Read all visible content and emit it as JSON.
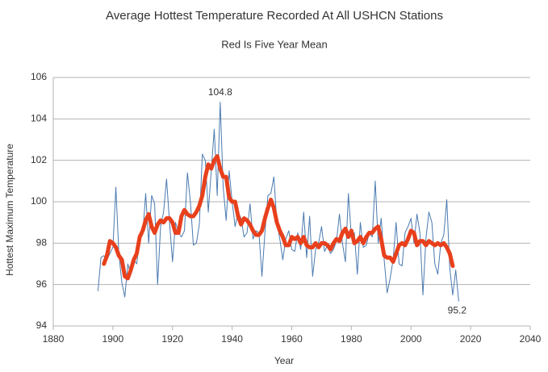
{
  "chart_data": {
    "type": "line",
    "title": "Average Hottest Temperature Recorded At All USHCN  Stations",
    "subtitle": "Red Is Five Year Mean",
    "x_label": "Year",
    "y_label": "Hottest Maximum Temperature",
    "xlim": [
      1880,
      2040
    ],
    "xticks": [
      1880,
      1900,
      1920,
      1940,
      1960,
      1980,
      2000,
      2020,
      2040
    ],
    "ylim": [
      94,
      106
    ],
    "yticks": [
      94,
      96,
      98,
      100,
      102,
      104,
      106
    ],
    "grid": true,
    "annotations": [
      "104.8",
      "95.2"
    ],
    "series": [
      {
        "color": "#4a7ab0",
        "width": 1,
        "x": [
          1895,
          1896,
          1897,
          1898,
          1899,
          1900,
          1901,
          1902,
          1903,
          1904,
          1905,
          1906,
          1907,
          1908,
          1909,
          1910,
          1911,
          1912,
          1913,
          1914,
          1915,
          1916,
          1917,
          1918,
          1919,
          1920,
          1921,
          1922,
          1923,
          1924,
          1925,
          1926,
          1927,
          1928,
          1929,
          1930,
          1931,
          1932,
          1933,
          1934,
          1935,
          1936,
          1937,
          1938,
          1939,
          1940,
          1941,
          1942,
          1943,
          1944,
          1945,
          1946,
          1947,
          1948,
          1949,
          1950,
          1951,
          1952,
          1953,
          1954,
          1955,
          1956,
          1957,
          1958,
          1959,
          1960,
          1961,
          1962,
          1963,
          1964,
          1965,
          1966,
          1967,
          1968,
          1969,
          1970,
          1971,
          1972,
          1973,
          1974,
          1975,
          1976,
          1977,
          1978,
          1979,
          1980,
          1981,
          1982,
          1983,
          1984,
          1985,
          1986,
          1987,
          1988,
          1989,
          1990,
          1991,
          1992,
          1993,
          1994,
          1995,
          1996,
          1997,
          1998,
          1999,
          2000,
          2001,
          2002,
          2003,
          2004,
          2005,
          2006,
          2007,
          2008,
          2009,
          2010,
          2011,
          2012,
          2013,
          2014,
          2015,
          2016
        ],
        "values": [
          95.7,
          97.3,
          97.4,
          97.2,
          97.5,
          97.8,
          100.7,
          97.5,
          96.1,
          95.4,
          97.0,
          96.5,
          97.2,
          97.0,
          98.2,
          98.4,
          100.4,
          98.0,
          100.3,
          99.9,
          96.0,
          98.8,
          99.5,
          101.1,
          99.0,
          97.1,
          99.0,
          98.5,
          98.3,
          98.6,
          101.4,
          100.0,
          97.9,
          98.0,
          98.9,
          102.3,
          102.0,
          99.5,
          101.5,
          103.5,
          100.3,
          104.8,
          100.7,
          99.1,
          101.5,
          100.0,
          98.8,
          99.5,
          99.2,
          98.3,
          98.5,
          99.9,
          98.2,
          98.6,
          98.5,
          96.4,
          98.5,
          100.3,
          100.4,
          101.2,
          99.0,
          98.2,
          97.2,
          98.2,
          98.6,
          97.7,
          97.6,
          98.5,
          97.7,
          99.5,
          97.3,
          99.3,
          96.4,
          97.7,
          98.0,
          98.8,
          97.6,
          97.9,
          97.5,
          97.7,
          98.1,
          99.4,
          98.0,
          97.1,
          100.4,
          98.3,
          98.5,
          96.5,
          99.0,
          97.8,
          97.9,
          98.5,
          98.3,
          101.0,
          98.0,
          99.2,
          97.2,
          95.6,
          96.3,
          97.2,
          99.0,
          97.0,
          96.9,
          98.5,
          98.8,
          99.2,
          98.0,
          99.4,
          98.5,
          95.5,
          98.2,
          99.5,
          99.0,
          97.0,
          96.5,
          98.0,
          98.4,
          100.1,
          96.8,
          95.5,
          96.7,
          95.2
        ]
      },
      {
        "color": "#e8401c",
        "width": 5,
        "x": [
          1897,
          1898,
          1899,
          1900,
          1901,
          1902,
          1903,
          1904,
          1905,
          1906,
          1907,
          1908,
          1909,
          1910,
          1911,
          1912,
          1913,
          1914,
          1915,
          1916,
          1917,
          1918,
          1919,
          1920,
          1921,
          1922,
          1923,
          1924,
          1925,
          1926,
          1927,
          1928,
          1929,
          1930,
          1931,
          1932,
          1933,
          1934,
          1935,
          1936,
          1937,
          1938,
          1939,
          1940,
          1941,
          1942,
          1943,
          1944,
          1945,
          1946,
          1947,
          1948,
          1949,
          1950,
          1951,
          1952,
          1953,
          1954,
          1955,
          1956,
          1957,
          1958,
          1959,
          1960,
          1961,
          1962,
          1963,
          1964,
          1965,
          1966,
          1967,
          1968,
          1969,
          1970,
          1971,
          1972,
          1973,
          1974,
          1975,
          1976,
          1977,
          1978,
          1979,
          1980,
          1981,
          1982,
          1983,
          1984,
          1985,
          1986,
          1987,
          1988,
          1989,
          1990,
          1991,
          1992,
          1993,
          1994,
          1995,
          1996,
          1997,
          1998,
          1999,
          2000,
          2001,
          2002,
          2003,
          2004,
          2005,
          2006,
          2007,
          2008,
          2009,
          2010,
          2011,
          2012,
          2013,
          2014
        ],
        "values": [
          97.0,
          97.4,
          98.1,
          98.0,
          97.8,
          97.4,
          97.2,
          96.4,
          96.3,
          96.7,
          97.2,
          97.5,
          98.3,
          98.6,
          99.1,
          99.4,
          98.8,
          98.5,
          98.9,
          99.1,
          99.0,
          99.2,
          99.2,
          99.0,
          98.5,
          98.5,
          99.3,
          99.6,
          99.4,
          99.3,
          99.3,
          99.5,
          99.8,
          100.3,
          101.2,
          101.8,
          101.6,
          102.0,
          102.2,
          101.6,
          101.2,
          101.2,
          100.2,
          100.0,
          100.0,
          99.3,
          98.9,
          99.2,
          99.1,
          98.9,
          98.6,
          98.4,
          98.4,
          98.6,
          99.2,
          99.7,
          100.1,
          99.7,
          99.0,
          98.6,
          98.3,
          97.9,
          97.9,
          98.3,
          98.2,
          98.3,
          98.0,
          98.3,
          97.9,
          97.8,
          97.8,
          98.0,
          97.8,
          98.0,
          98.0,
          97.9,
          97.7,
          98.0,
          98.2,
          98.1,
          98.5,
          98.7,
          98.3,
          98.6,
          98.0,
          98.1,
          98.3,
          98.0,
          98.3,
          98.5,
          98.5,
          98.7,
          98.8,
          98.2,
          97.4,
          97.3,
          97.3,
          97.1,
          97.5,
          97.9,
          98.0,
          97.9,
          98.2,
          98.6,
          98.5,
          97.9,
          98.1,
          98.1,
          97.9,
          98.1,
          98.0,
          97.9,
          98.0,
          97.9,
          98.0,
          97.8,
          97.5,
          96.9
        ]
      }
    ]
  }
}
